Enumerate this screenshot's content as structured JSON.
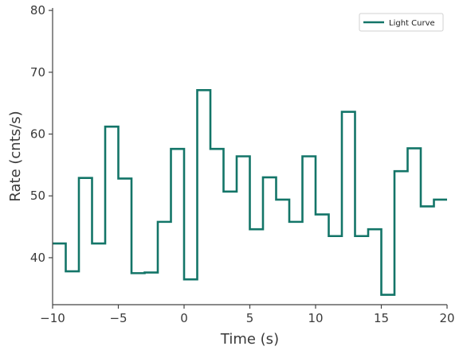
{
  "chart_data": {
    "type": "line",
    "title": "",
    "xlabel": "Time (s)",
    "ylabel": "Rate (cnts/s)",
    "xlim": [
      -10,
      20
    ],
    "ylim": [
      32.4,
      80.4
    ],
    "xticks": [
      -10,
      -5,
      0,
      5,
      10,
      15,
      20
    ],
    "xtick_labels": [
      "−10",
      "−5",
      "0",
      "5",
      "10",
      "15",
      "20"
    ],
    "yticks": [
      40,
      50,
      60,
      70,
      80
    ],
    "ytick_labels": [
      "40",
      "50",
      "60",
      "70",
      "80"
    ],
    "grid": false,
    "legend_position": "top-right",
    "series": [
      {
        "name": "Light Curve",
        "color": "#137568",
        "drawstyle": "steps-post",
        "x": [
          -10,
          -9,
          -8,
          -7,
          -6,
          -5,
          -4,
          -3,
          -2,
          -1,
          0,
          1,
          2,
          3,
          4,
          5,
          6,
          7,
          8,
          9,
          10,
          11,
          12,
          13,
          14,
          15,
          16,
          17,
          18,
          19,
          20
        ],
        "y": [
          42.3,
          37.8,
          52.9,
          42.3,
          61.2,
          52.8,
          37.5,
          37.6,
          45.8,
          57.6,
          36.5,
          67.1,
          57.6,
          50.7,
          56.4,
          44.6,
          53.0,
          49.4,
          45.8,
          56.4,
          47.0,
          43.5,
          63.6,
          43.5,
          44.6,
          34.0,
          54.0,
          57.7,
          48.3,
          49.4,
          49.4
        ]
      }
    ]
  }
}
